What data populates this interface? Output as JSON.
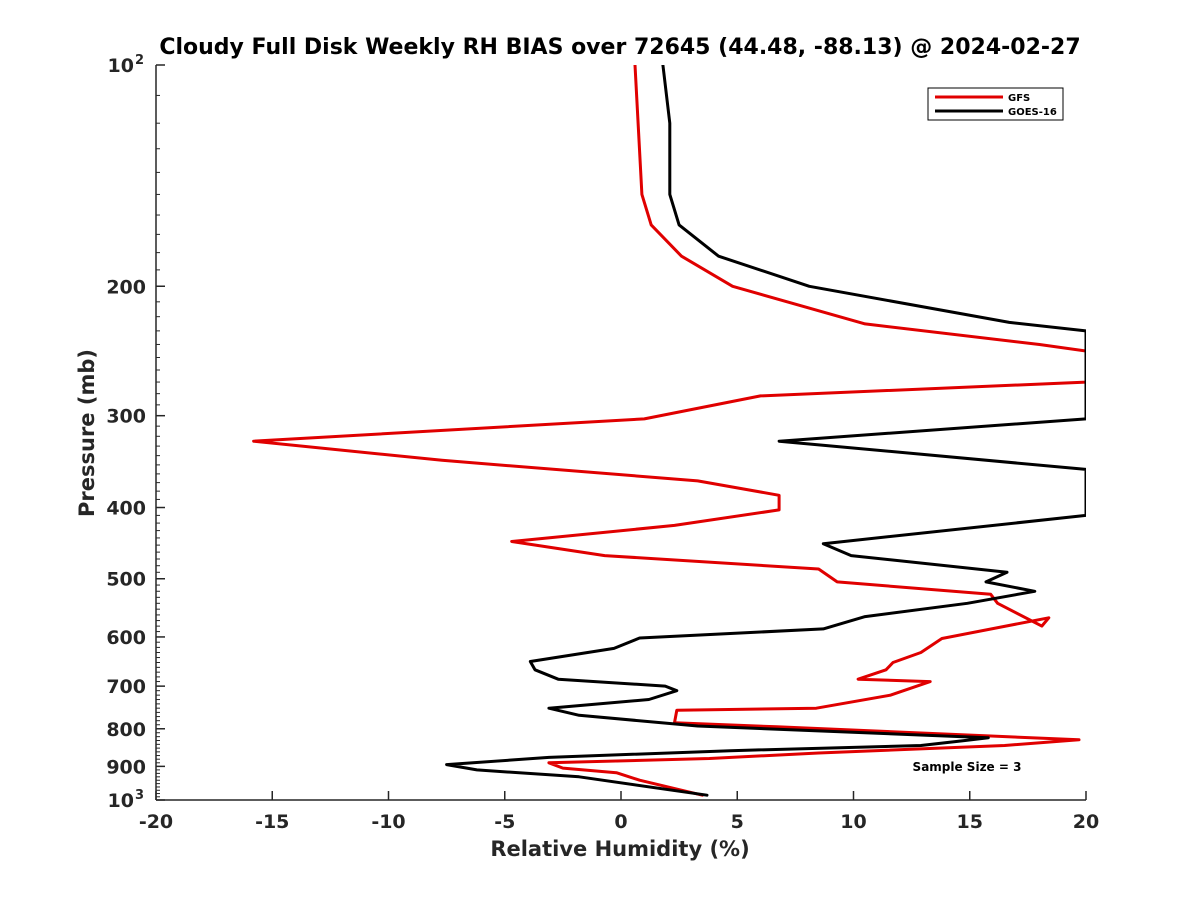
{
  "chart_data": {
    "type": "line",
    "title": "Cloudy Full Disk Weekly RH BIAS over 72645 (44.48, -88.13) @ 2024-02-27",
    "xlabel": "Relative Humidity (%)",
    "ylabel": "Pressure (mb)",
    "xlim": [
      -20,
      20
    ],
    "ylim": [
      100,
      1000
    ],
    "y_scale": "log",
    "y_reversed": true,
    "grid": false,
    "legend_position": "top-right",
    "x_ticks": [
      -20,
      -15,
      -10,
      -5,
      0,
      5,
      10,
      15,
      20
    ],
    "x_tick_labels": [
      "-20",
      "-15",
      "-10",
      "-5",
      "0",
      "5",
      "10",
      "15",
      "20"
    ],
    "y_ticks": [
      {
        "value": 100,
        "label": "10",
        "sup": "2"
      },
      {
        "value": 200,
        "label": "200",
        "sup": ""
      },
      {
        "value": 300,
        "label": "300",
        "sup": ""
      },
      {
        "value": 400,
        "label": "400",
        "sup": ""
      },
      {
        "value": 500,
        "label": "500",
        "sup": ""
      },
      {
        "value": 600,
        "label": "600",
        "sup": ""
      },
      {
        "value": 700,
        "label": "700",
        "sup": ""
      },
      {
        "value": 800,
        "label": "800",
        "sup": ""
      },
      {
        "value": 900,
        "label": "900",
        "sup": ""
      },
      {
        "value": 1000,
        "label": "10",
        "sup": "3"
      }
    ],
    "annotation": "Sample Size = 3",
    "series": [
      {
        "name": "GFS",
        "color": "#e00000",
        "points": [
          [
            0.6,
            100
          ],
          [
            0.9,
            150
          ],
          [
            1.3,
            165
          ],
          [
            2.6,
            182
          ],
          [
            4.8,
            200
          ],
          [
            10.5,
            225
          ],
          [
            18,
            240
          ],
          [
            20,
            245
          ],
          [
            20,
            270
          ],
          [
            6,
            282
          ],
          [
            1,
            303
          ],
          [
            -15.8,
            325
          ],
          [
            -7.7,
            345
          ],
          [
            3.3,
            368
          ],
          [
            6.8,
            385
          ],
          [
            6.8,
            403
          ],
          [
            2.3,
            423
          ],
          [
            -4.7,
            445
          ],
          [
            -0.7,
            465
          ],
          [
            8.5,
            485
          ],
          [
            9.3,
            505
          ],
          [
            15.9,
            525
          ],
          [
            16.2,
            540
          ],
          [
            18.1,
            580
          ],
          [
            18.4,
            565
          ],
          [
            13.8,
            603
          ],
          [
            12.9,
            630
          ],
          [
            11.7,
            650
          ],
          [
            11.4,
            665
          ],
          [
            10.2,
            685
          ],
          [
            13.3,
            690
          ],
          [
            11.6,
            720
          ],
          [
            8.4,
            750
          ],
          [
            2.4,
            755
          ],
          [
            2.3,
            785
          ],
          [
            6.7,
            795
          ],
          [
            19.7,
            828
          ],
          [
            16.5,
            843
          ],
          [
            8.5,
            863
          ],
          [
            3.8,
            878
          ],
          [
            -3.1,
            890
          ],
          [
            -2.5,
            905
          ],
          [
            -0.2,
            918
          ],
          [
            0.8,
            940
          ],
          [
            3.5,
            985
          ]
        ]
      },
      {
        "name": "GOES-16",
        "color": "#000000",
        "points": [
          [
            1.8,
            100
          ],
          [
            2.1,
            120
          ],
          [
            2.1,
            150
          ],
          [
            2.5,
            165
          ],
          [
            4.2,
            182
          ],
          [
            8.1,
            200
          ],
          [
            16.7,
            224
          ],
          [
            20,
            230
          ],
          [
            20,
            303
          ],
          [
            6.8,
            325
          ],
          [
            20,
            355
          ],
          [
            20,
            410
          ],
          [
            8.7,
            448
          ],
          [
            9.9,
            465
          ],
          [
            16.6,
            490
          ],
          [
            15.7,
            505
          ],
          [
            17.8,
            520
          ],
          [
            14.9,
            540
          ],
          [
            10.5,
            563
          ],
          [
            8.7,
            585
          ],
          [
            0.8,
            602
          ],
          [
            -0.3,
            622
          ],
          [
            -3.9,
            648
          ],
          [
            -3.7,
            665
          ],
          [
            -2.7,
            685
          ],
          [
            1.9,
            700
          ],
          [
            2.4,
            710
          ],
          [
            1.2,
            730
          ],
          [
            -3.1,
            750
          ],
          [
            -1.8,
            767
          ],
          [
            3.3,
            793
          ],
          [
            15.8,
            823
          ],
          [
            14.8,
            830
          ],
          [
            12.9,
            843
          ],
          [
            4.7,
            857
          ],
          [
            -3.1,
            875
          ],
          [
            -7.5,
            895
          ],
          [
            -6.2,
            910
          ],
          [
            -1.8,
            930
          ],
          [
            3.7,
            985
          ]
        ]
      }
    ]
  }
}
